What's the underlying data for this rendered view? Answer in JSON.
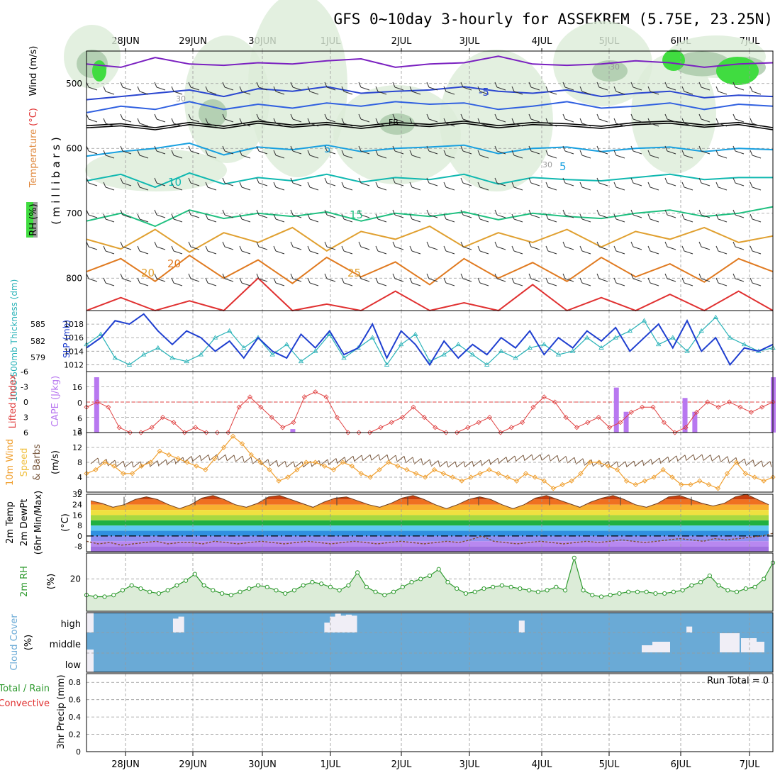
{
  "title": "GFS 0~10day 3-hourly for ASSEKREM (5.75E, 23.25N)",
  "days": [
    "28JUN",
    "29JUN",
    "30JUN",
    "1JUL",
    "2JUL",
    "3JUL",
    "4JUL",
    "5JUL",
    "6JUL",
    "7JUL"
  ],
  "colors": {
    "temp_warm": "#e07a20",
    "temp_mid": "#1a9e8a",
    "temp_cold": "#2a46d0",
    "fr": "#000000",
    "slp": "#1f3fd0",
    "thickness": "#2ab3b8",
    "li": "#e04040",
    "cape": "#b878f0",
    "wind10": "#f0a030",
    "barbs": "#7a5a40",
    "rh2m": "#2e9a2e",
    "cloud": "#6aaad6",
    "cloudfree": "#f0eef6"
  },
  "chart_data": [
    {
      "type": "contour",
      "panel": "upper-air",
      "ylabel_parts": [
        "RH (%)",
        "Temperature",
        "(°C)",
        "Wind (m/s)"
      ],
      "ylabel2": "( m i l l i b a r s )",
      "ylim": [
        850,
        450
      ],
      "yticks": [
        "500",
        "600",
        "700",
        "800"
      ],
      "contour_labels": [
        "-5",
        "5",
        "5",
        "10",
        "15",
        "20",
        "25",
        "20",
        "30",
        "30",
        "30",
        "FR"
      ],
      "isotherms": [
        {
          "value": -10,
          "color": "#7a20c0",
          "p": [
            470,
            475,
            460,
            470,
            472,
            468,
            470,
            465,
            462,
            475,
            470,
            468,
            458,
            470,
            472,
            470,
            465,
            468,
            475,
            470,
            468
          ]
        },
        {
          "value": -5,
          "color": "#2a46d0",
          "p": [
            525,
            520,
            515,
            510,
            520,
            508,
            512,
            505,
            515,
            512,
            510,
            505,
            512,
            515,
            510,
            520,
            515,
            512,
            522,
            518,
            520
          ]
        },
        {
          "value": 0,
          "color": "#3060e0",
          "p": [
            545,
            535,
            540,
            528,
            540,
            532,
            538,
            530,
            535,
            528,
            532,
            530,
            540,
            535,
            528,
            538,
            535,
            530,
            540,
            532,
            535
          ]
        },
        {
          "value": 5,
          "color": "#18a0e0",
          "p": [
            612,
            605,
            600,
            592,
            610,
            598,
            602,
            595,
            605,
            600,
            598,
            595,
            608,
            600,
            598,
            605,
            600,
            598,
            605,
            600,
            602
          ]
        },
        {
          "value": 10,
          "color": "#10b8b0",
          "p": [
            650,
            640,
            660,
            638,
            655,
            645,
            650,
            640,
            652,
            645,
            648,
            640,
            655,
            645,
            648,
            650,
            645,
            640,
            648,
            645,
            645
          ]
        },
        {
          "value": 15,
          "color": "#20c080",
          "p": [
            712,
            700,
            720,
            695,
            708,
            700,
            705,
            698,
            712,
            700,
            705,
            698,
            710,
            700,
            705,
            708,
            700,
            695,
            705,
            700,
            690
          ]
        },
        {
          "value": 20,
          "color": "#e0a030",
          "p": [
            740,
            755,
            725,
            760,
            730,
            745,
            722,
            758,
            728,
            740,
            720,
            752,
            730,
            745,
            725,
            752,
            728,
            740,
            722,
            745,
            735
          ]
        },
        {
          "value": 25,
          "color": "#e07a20",
          "p": [
            790,
            770,
            805,
            765,
            800,
            772,
            808,
            768,
            798,
            775,
            810,
            770,
            800,
            776,
            805,
            768,
            798,
            778,
            806,
            770,
            790
          ]
        },
        {
          "value": 30,
          "color": "#e03030",
          "p": [
            850,
            830,
            850,
            835,
            850,
            800,
            850,
            840,
            850,
            820,
            850,
            838,
            850,
            810,
            850,
            830,
            850,
            825,
            850,
            820,
            850
          ]
        }
      ],
      "freezing_level": [
        565,
        562,
        568,
        560,
        566,
        558,
        564,
        560,
        566,
        560,
        563,
        558,
        565,
        560,
        562,
        566,
        560,
        558,
        564,
        560,
        568
      ]
    },
    {
      "type": "line",
      "panel": "slp-thickness",
      "ylabel_left": "1000-500mb Thickness (dm)",
      "ylabel_right": "SLP (mb)",
      "left_ticks": [
        "585",
        "582",
        "579"
      ],
      "right_ticks": [
        "1018",
        "1016",
        "1014",
        "1012"
      ],
      "ylim_slp": [
        1011,
        1020
      ],
      "series": [
        {
          "name": "SLP (mb)",
          "values": [
            1014.5,
            1016,
            1018.5,
            1018,
            1019.5,
            1017,
            1015,
            1017,
            1016,
            1014,
            1015.5,
            1013,
            1016,
            1014,
            1013,
            1016.5,
            1014.5,
            1017,
            1013.5,
            1014.5,
            1018,
            1013,
            1017,
            1015,
            1012,
            1015.5,
            1013,
            1015,
            1013.5,
            1016,
            1014.5,
            1017,
            1013.5,
            1016,
            1014.5,
            1017,
            1015.5,
            1017.5,
            1014,
            1016,
            1018,
            1014.5,
            1018.5,
            1014,
            1016,
            1012,
            1014.5,
            1014,
            1015
          ]
        },
        {
          "name": "1000-500mb Thickness (dm)",
          "values": [
            1015,
            1016.5,
            1013,
            1012,
            1013.5,
            1014.5,
            1013,
            1012.5,
            1013.5,
            1016,
            1017,
            1014.5,
            1016,
            1013.5,
            1015,
            1012.5,
            1014,
            1016.5,
            1013,
            1014.5,
            1016,
            1012,
            1015,
            1016.5,
            1012.5,
            1013.5,
            1015,
            1013.5,
            1012,
            1014,
            1013,
            1014.5,
            1015,
            1013.5,
            1014,
            1016,
            1014.5,
            1016,
            1017,
            1018.5,
            1015,
            1016,
            1014,
            1017,
            1019,
            1016,
            1015,
            1014,
            1014.5
          ]
        }
      ]
    },
    {
      "type": "bar+line",
      "panel": "cape-li",
      "ylabel_left": "Lifted Index",
      "ylabel_right": "CAPE (J/kg)",
      "li_ticks": [
        "-6",
        "-3",
        "0",
        "3",
        "6"
      ],
      "cape_ticks": [
        "16",
        "6",
        "0",
        "3"
      ],
      "li_values": [
        1,
        0,
        1,
        5,
        7,
        6,
        5,
        3,
        4,
        6,
        5,
        7,
        8,
        6,
        1,
        -1,
        1,
        3,
        5,
        4,
        -1,
        -2,
        -1,
        3,
        6,
        7,
        6,
        5,
        4,
        3,
        1,
        3,
        5,
        7,
        8,
        5,
        4,
        3,
        6,
        5,
        4,
        1,
        -1,
        0,
        3,
        5,
        4,
        3,
        5,
        4,
        2,
        1,
        1,
        4,
        6,
        5,
        2,
        0,
        1,
        0,
        1,
        2,
        1,
        0
      ],
      "cape_values": [
        0,
        16,
        0,
        0,
        0,
        0,
        0,
        0,
        0,
        0,
        0,
        0,
        0,
        0,
        0,
        0,
        0,
        0,
        0,
        0,
        0,
        1,
        0,
        0,
        0,
        0,
        0,
        0,
        0,
        0,
        0,
        0,
        0,
        0,
        0,
        0,
        0,
        0,
        0,
        0,
        0,
        0,
        0,
        0,
        0,
        0,
        0,
        0,
        0,
        0,
        0,
        0,
        0,
        0,
        13,
        6,
        0,
        0,
        0,
        0,
        0,
        10,
        6,
        0,
        0,
        0,
        0,
        0,
        0,
        0,
        16
      ]
    },
    {
      "type": "line",
      "panel": "wind10m",
      "ylabel": "10m Wind Speed & Barbs (m/s)",
      "yticks": [
        "16",
        "12",
        "8",
        "4",
        "0"
      ],
      "ylim": [
        0,
        16
      ],
      "values": [
        5,
        6,
        8,
        7,
        5,
        5,
        7,
        8,
        11,
        10,
        9,
        8,
        7,
        6,
        9,
        12,
        15,
        13,
        10,
        8,
        6,
        3,
        4,
        6,
        8,
        8,
        7,
        6,
        8,
        7,
        5,
        4,
        6,
        8,
        7,
        6,
        5,
        4,
        6,
        5,
        4,
        3,
        4,
        5,
        6,
        5,
        4,
        3,
        5,
        4,
        3,
        1,
        2,
        3,
        5,
        8,
        8,
        7,
        6,
        3,
        2,
        3,
        4,
        6,
        4,
        2,
        2,
        3,
        2,
        1,
        5,
        8,
        5,
        4,
        3,
        4
      ]
    },
    {
      "type": "area",
      "panel": "t2m",
      "ylabel": "2m Temp 2m DewPt (6hr Min/Max) (°C)",
      "yticks": [
        "32",
        "24",
        "16",
        "8",
        "0",
        "-8"
      ],
      "ylim": [
        -12,
        32
      ],
      "temp_values": [
        27,
        25,
        22,
        24,
        28,
        30,
        28,
        24,
        21,
        24,
        29,
        31,
        28,
        24,
        22,
        25,
        30,
        31,
        28,
        25,
        22,
        26,
        29,
        30,
        27,
        24,
        22,
        25,
        29,
        31,
        28,
        24,
        21,
        24,
        28,
        30,
        28,
        24,
        21,
        24,
        29,
        31,
        28,
        25,
        22,
        26,
        29,
        31,
        28,
        24,
        22,
        25,
        30,
        31,
        28,
        25,
        23,
        25,
        30,
        32,
        28,
        24
      ],
      "dewpt_values": [
        -4,
        -6,
        -5,
        -7,
        -6,
        -5,
        -4,
        -6,
        -5,
        -5,
        -6,
        -4,
        -5,
        -6,
        -5,
        -4,
        -5,
        -6,
        -5,
        -4,
        -5,
        -6,
        -5,
        -4,
        -5,
        -6,
        -5,
        -4,
        -5,
        -6,
        -5,
        -4,
        -5,
        -3,
        0,
        -4,
        -5,
        -6,
        -5,
        -4,
        -5,
        -6,
        -5,
        -4,
        -5,
        -4,
        -3,
        -4,
        -5,
        -4,
        -3,
        -2,
        -3,
        -4,
        -2,
        -3,
        -2,
        -1,
        0,
        2
      ]
    },
    {
      "type": "line",
      "panel": "rh2m",
      "ylabel": "2m RH (%)",
      "yticks": [
        "20"
      ],
      "ylim": [
        0,
        36
      ],
      "values": [
        10,
        9,
        9,
        10,
        13,
        16,
        14,
        12,
        11,
        13,
        16,
        19,
        23,
        16,
        13,
        11,
        10,
        12,
        14,
        16,
        15,
        13,
        11,
        13,
        16,
        18,
        17,
        15,
        13,
        16,
        24,
        15,
        12,
        10,
        12,
        15,
        18,
        20,
        22,
        26,
        18,
        14,
        11,
        12,
        14,
        15,
        16,
        15,
        14,
        13,
        12,
        13,
        15,
        13,
        33,
        13,
        10,
        9,
        10,
        11,
        12,
        12,
        12,
        11,
        11,
        12,
        13,
        16,
        18,
        22,
        16,
        13,
        12,
        14,
        15,
        20,
        30
      ]
    },
    {
      "type": "heatmap",
      "panel": "cloud",
      "ylabel": "Cloud Cover (%)",
      "levels": [
        "high",
        "middle",
        "low"
      ],
      "high_free": [
        0,
        0,
        0,
        0,
        0,
        0,
        0,
        0,
        0,
        0,
        0,
        0,
        0,
        0,
        0,
        0,
        70,
        80,
        0,
        0,
        0,
        0,
        0,
        0,
        0,
        0,
        0,
        0,
        0,
        0,
        0,
        0,
        0,
        0,
        0,
        0,
        0,
        0,
        0,
        0,
        0,
        0,
        0,
        0,
        50,
        80,
        95,
        85,
        90,
        85,
        0,
        0,
        0,
        0,
        0,
        0,
        0,
        0,
        0,
        0,
        0,
        0,
        0,
        0,
        0,
        0,
        0,
        0,
        0,
        0,
        0,
        0,
        0,
        0,
        0,
        0,
        0,
        0,
        0,
        0,
        60,
        0,
        0,
        0,
        0,
        0,
        0,
        0,
        0,
        0,
        0,
        0,
        0,
        0,
        0,
        0,
        0,
        0,
        0,
        0,
        0,
        0,
        0,
        0,
        0,
        0,
        0,
        0,
        0,
        0,
        0,
        30,
        0,
        0,
        0,
        0,
        0,
        0,
        0,
        0,
        0,
        0,
        0,
        0,
        0,
        0,
        0
      ],
      "run_total_label": "Run Total = 0"
    },
    {
      "type": "bar",
      "panel": "precip",
      "ylabel": "3hr Precip (mm)",
      "legend": [
        "Total / Rain",
        "Convective"
      ],
      "yticks": [
        "0.8",
        "0.6",
        "0.4",
        "0.2",
        "0"
      ],
      "ylim": [
        0,
        0.9
      ],
      "values": []
    }
  ]
}
